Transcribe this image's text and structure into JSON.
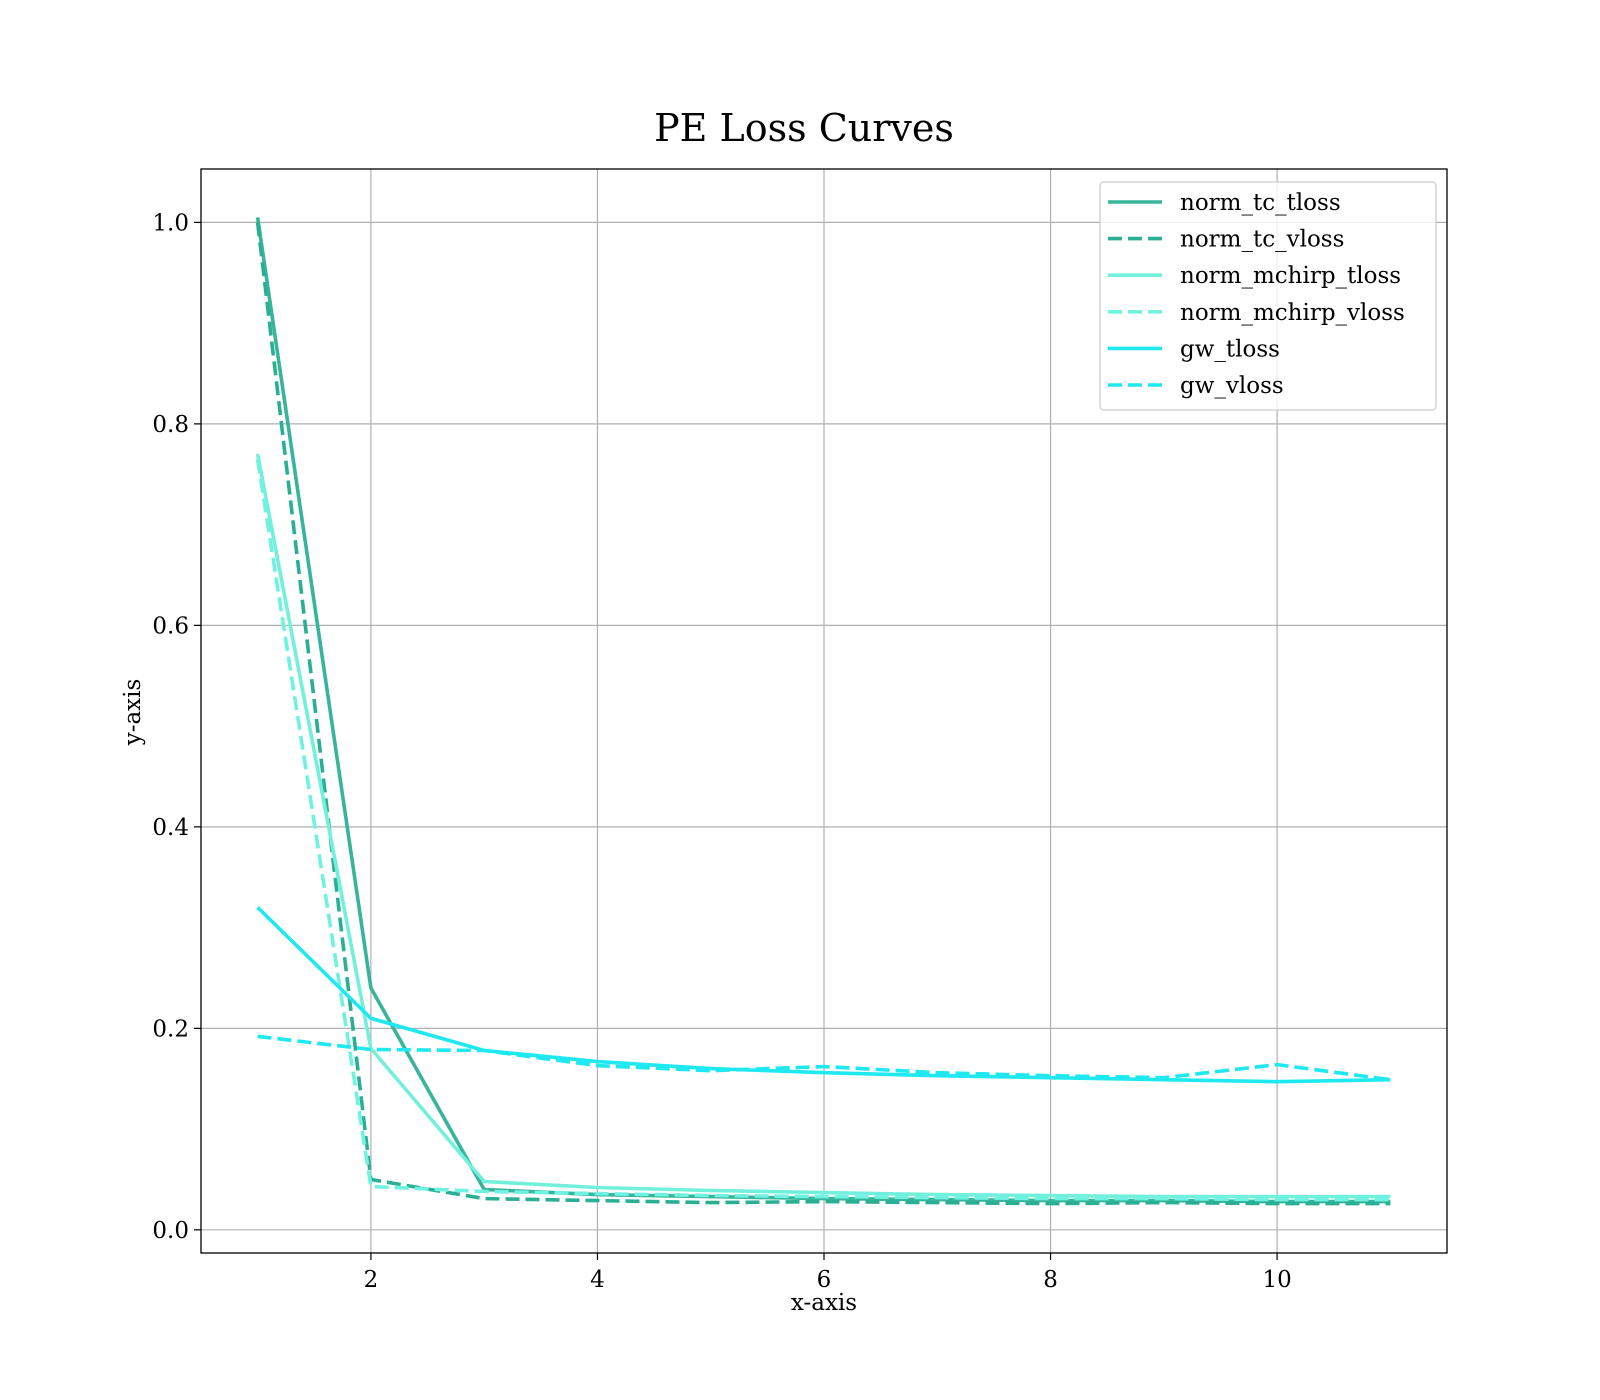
{
  "chart_data": {
    "type": "line",
    "title": "PE Loss Curves",
    "xlabel": "x-axis",
    "ylabel": "y-axis",
    "xlim": [
      0.5,
      11.5
    ],
    "ylim": [
      -0.023,
      1.053
    ],
    "xticks": [
      2,
      4,
      6,
      8,
      10
    ],
    "yticks": [
      0.0,
      0.2,
      0.4,
      0.6,
      0.8,
      1.0
    ],
    "xtick_labels": [
      "2",
      "4",
      "6",
      "8",
      "10"
    ],
    "ytick_labels": [
      "0.0",
      "0.2",
      "0.4",
      "0.6",
      "0.8",
      "1.0"
    ],
    "grid": true,
    "legend_position": "top-right",
    "x": [
      1,
      2,
      3,
      4,
      5,
      6,
      7,
      8,
      9,
      10,
      11
    ],
    "series": [
      {
        "name": "norm_tc_tloss",
        "style": "solid",
        "color": "#36b59b",
        "values": [
          1.005,
          0.24,
          0.04,
          0.035,
          0.033,
          0.031,
          0.03,
          0.029,
          0.029,
          0.028,
          0.028
        ]
      },
      {
        "name": "norm_tc_vloss",
        "style": "dashed",
        "color": "#2aaf95",
        "values": [
          1.0,
          0.05,
          0.031,
          0.029,
          0.027,
          0.028,
          0.027,
          0.026,
          0.027,
          0.026,
          0.026
        ]
      },
      {
        "name": "norm_mchirp_tloss",
        "style": "solid",
        "color": "#72f0dc",
        "values": [
          0.77,
          0.18,
          0.048,
          0.042,
          0.039,
          0.037,
          0.035,
          0.034,
          0.033,
          0.033,
          0.033
        ]
      },
      {
        "name": "norm_mchirp_vloss",
        "style": "dashed",
        "color": "#6ff2e0",
        "values": [
          0.765,
          0.043,
          0.038,
          0.036,
          0.034,
          0.033,
          0.032,
          0.031,
          0.031,
          0.03,
          0.03
        ]
      },
      {
        "name": "gw_tloss",
        "style": "solid",
        "color": "#1ee8f0",
        "values": [
          0.32,
          0.21,
          0.178,
          0.167,
          0.16,
          0.156,
          0.153,
          0.151,
          0.149,
          0.147,
          0.149
        ]
      },
      {
        "name": "gw_vloss",
        "style": "dashed",
        "color": "#1ee8f0",
        "values": [
          0.192,
          0.179,
          0.178,
          0.163,
          0.158,
          0.162,
          0.156,
          0.153,
          0.151,
          0.164,
          0.149
        ]
      }
    ]
  }
}
